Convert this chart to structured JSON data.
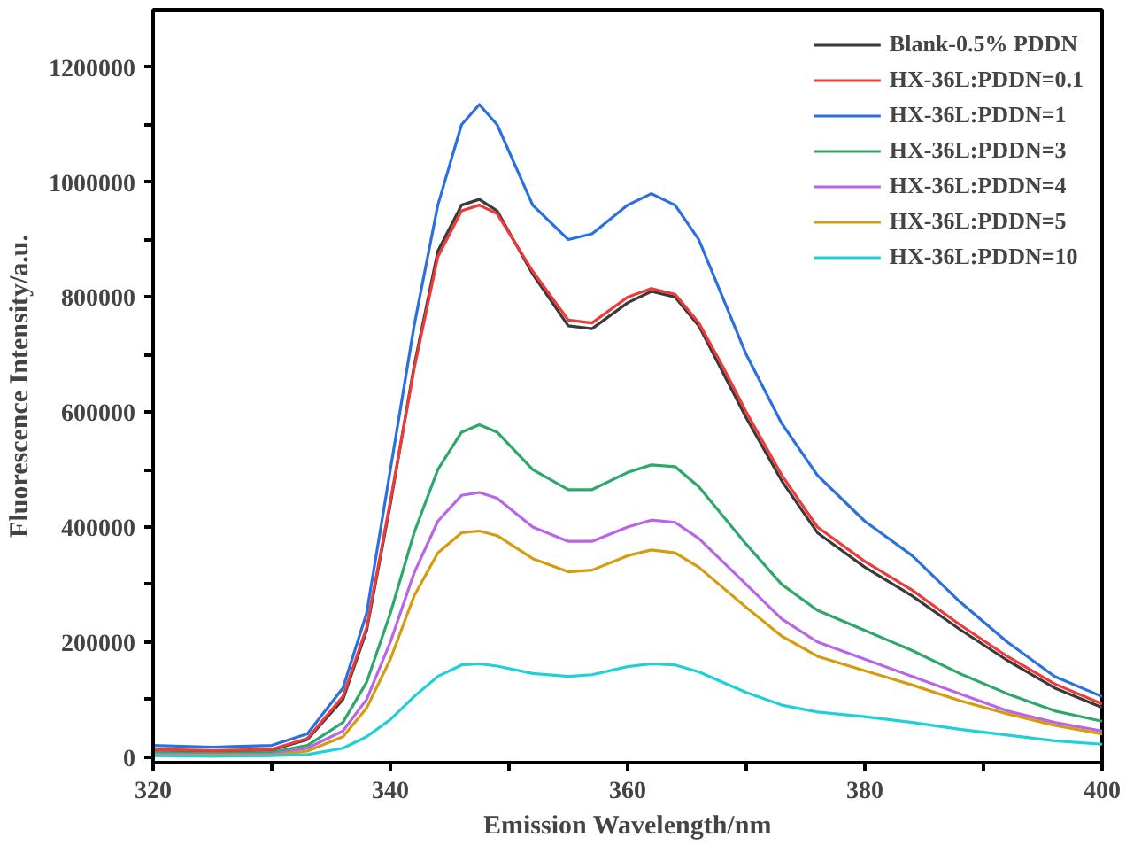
{
  "chart_data": {
    "type": "line",
    "xlabel": "Emission Wavelength/nm",
    "ylabel": "Fluorescence Intensity/a.u.",
    "x": [
      320,
      325,
      330,
      333,
      336,
      338,
      340,
      342,
      344,
      346,
      347.5,
      349,
      352,
      355,
      357,
      360,
      362,
      364,
      366,
      368,
      370,
      373,
      376,
      380,
      384,
      388,
      392,
      396,
      400
    ],
    "xlim": [
      320,
      400
    ],
    "ylim": [
      -10000,
      1300000
    ],
    "xticks": [
      320,
      {
        "value": 330,
        "label": null
      },
      340,
      {
        "value": 350,
        "label": null
      },
      360,
      {
        "value": 370,
        "label": null
      },
      380,
      {
        "value": 390,
        "label": null
      },
      400
    ],
    "yticks": [
      0,
      {
        "value": 100000,
        "label": null
      },
      200000,
      {
        "value": 300000,
        "label": null
      },
      400000,
      {
        "value": 500000,
        "label": null
      },
      600000,
      {
        "value": 700000,
        "label": null
      },
      800000,
      {
        "value": 900000,
        "label": null
      },
      1000000,
      {
        "value": 1100000,
        "label": null
      },
      1200000
    ],
    "grid": false,
    "legend": "top right",
    "line_style": "solid",
    "marker": "none",
    "series": [
      {
        "name": "Blank-0.5% PDDN",
        "color": "#3a3a3a",
        "values": [
          12000,
          8000,
          12000,
          30000,
          100000,
          220000,
          440000,
          680000,
          880000,
          960000,
          970000,
          950000,
          840000,
          750000,
          745000,
          790000,
          810000,
          800000,
          750000,
          670000,
          590000,
          480000,
          390000,
          330000,
          280000,
          222000,
          168000,
          120000,
          86000
        ]
      },
      {
        "name": "HX-36L:PDDN=0.1",
        "color": "#f03a3a",
        "values": [
          13000,
          11000,
          13000,
          32000,
          105000,
          225000,
          445000,
          675000,
          870000,
          950000,
          960000,
          945000,
          845000,
          760000,
          755000,
          800000,
          815000,
          805000,
          755000,
          680000,
          600000,
          490000,
          400000,
          340000,
          290000,
          230000,
          175000,
          127000,
          92000
        ]
      },
      {
        "name": "HX-36L:PDDN=1",
        "color": "#2a70e0",
        "values": [
          20000,
          17000,
          20000,
          40000,
          120000,
          250000,
          500000,
          750000,
          960000,
          1100000,
          1135000,
          1100000,
          960000,
          900000,
          910000,
          960000,
          980000,
          960000,
          900000,
          800000,
          700000,
          580000,
          490000,
          410000,
          350000,
          270000,
          200000,
          140000,
          105000
        ]
      },
      {
        "name": "HX-36L:PDDN=3",
        "color": "#2ea86a",
        "values": [
          8000,
          6000,
          8000,
          20000,
          60000,
          130000,
          250000,
          390000,
          500000,
          565000,
          578000,
          565000,
          500000,
          465000,
          465000,
          495000,
          508000,
          505000,
          470000,
          420000,
          370000,
          300000,
          255000,
          220000,
          185000,
          145000,
          110000,
          80000,
          62000
        ]
      },
      {
        "name": "HX-36L:PDDN=4",
        "color": "#b865e8",
        "values": [
          5000,
          4000,
          5000,
          15000,
          45000,
          100000,
          200000,
          320000,
          410000,
          455000,
          460000,
          450000,
          400000,
          375000,
          375000,
          400000,
          412000,
          408000,
          380000,
          340000,
          300000,
          240000,
          200000,
          170000,
          140000,
          110000,
          80000,
          60000,
          45000
        ]
      },
      {
        "name": "HX-36L:PDDN=5",
        "color": "#d69c10",
        "values": [
          3000,
          3000,
          3000,
          10000,
          35000,
          85000,
          170000,
          280000,
          355000,
          390000,
          393000,
          385000,
          345000,
          322000,
          325000,
          350000,
          360000,
          355000,
          330000,
          295000,
          260000,
          210000,
          175000,
          150000,
          125000,
          98000,
          75000,
          55000,
          40000
        ]
      },
      {
        "name": "HX-36L:PDDN=10",
        "color": "#20d0d8",
        "values": [
          2000,
          1000,
          2000,
          4000,
          15000,
          35000,
          65000,
          105000,
          140000,
          160000,
          162000,
          158000,
          145000,
          140000,
          143000,
          157000,
          162000,
          160000,
          148000,
          130000,
          112000,
          90000,
          78000,
          70000,
          60000,
          48000,
          38000,
          28000,
          22000
        ]
      }
    ]
  }
}
